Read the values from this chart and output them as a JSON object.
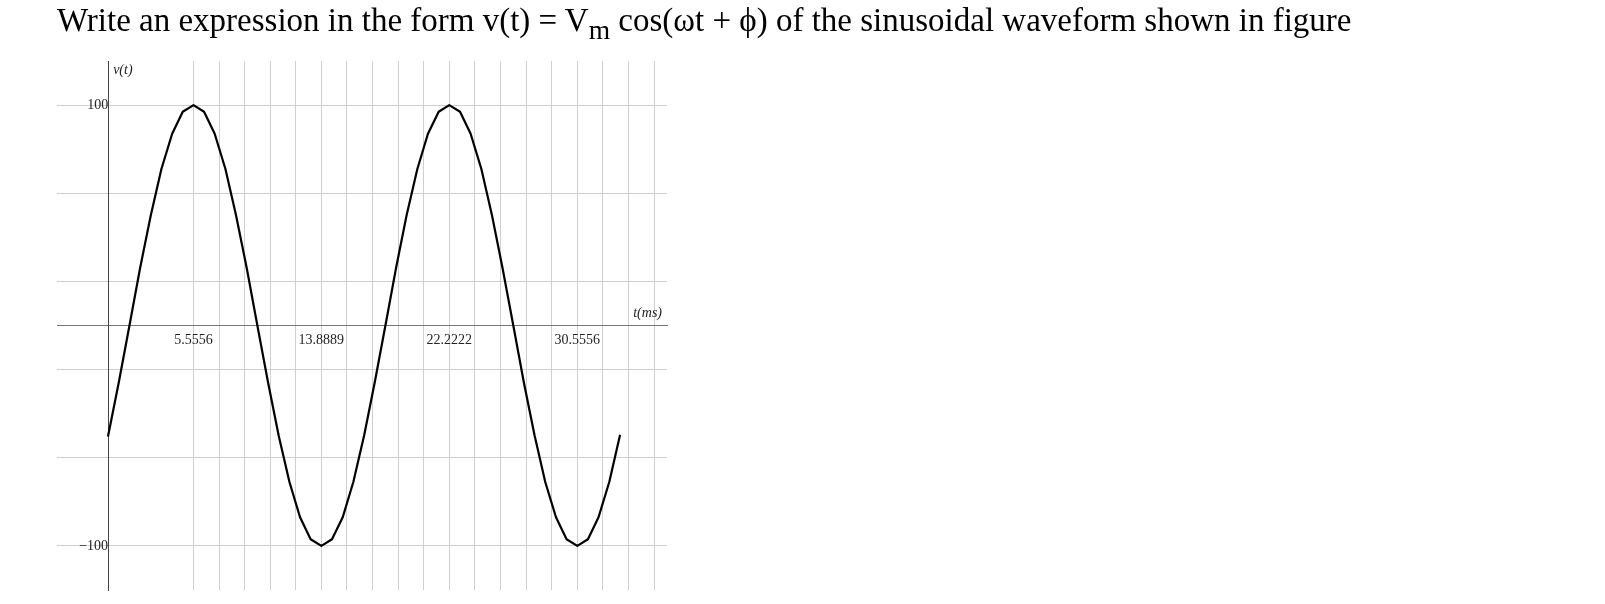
{
  "chart_data": {
    "type": "line",
    "title": "Write an expression in the form v(t) = V$_{m}$ cos(ωt + ϕ) of the sinusoidal waveform shown in figure",
    "xlabel": "t(ms)",
    "ylabel": "v(t)",
    "x": [
      0,
      0.69,
      1.39,
      2.08,
      2.78,
      3.47,
      4.17,
      4.86,
      5.56,
      6.25,
      6.94,
      7.64,
      8.33,
      9.03,
      9.72,
      10.42,
      11.11,
      11.81,
      12.5,
      13.19,
      13.89,
      14.58,
      15.28,
      15.97,
      16.67,
      17.36,
      18.06,
      18.75,
      19.44,
      20.14,
      20.83,
      21.53,
      22.22,
      22.92,
      23.61,
      24.31,
      25,
      25.69,
      26.39,
      27.08,
      27.78,
      28.47,
      29.17,
      29.86,
      30.56,
      31.25,
      31.94,
      32.64,
      33.33
    ],
    "series": [
      {
        "color": "#000000",
        "values": [
          -50,
          -26,
          0,
          26,
          50,
          71,
          87,
          97,
          100,
          97,
          87,
          71,
          50,
          26,
          0,
          -26,
          -50,
          -71,
          -87,
          -97,
          -100,
          -97,
          -87,
          -71,
          -50,
          -26,
          0,
          26,
          50,
          71,
          87,
          97,
          100,
          97,
          87,
          71,
          50,
          26,
          0,
          -26,
          -50,
          -71,
          -87,
          -97,
          -100,
          -97,
          -87,
          -71,
          -50
        ]
      }
    ],
    "xlim": [
      -3.33,
      36.4
    ],
    "ylim": [
      -120,
      120
    ],
    "xticks": [
      {
        "value": 5.5556,
        "label": "5.5556"
      },
      {
        "value": 7.2222,
        "label": null
      },
      {
        "value": 8.8889,
        "label": null
      },
      {
        "value": 10.5556,
        "label": null
      },
      {
        "value": 12.2222,
        "label": null
      },
      {
        "value": 13.8889,
        "label": "13.8889"
      },
      {
        "value": 15.5556,
        "label": null
      },
      {
        "value": 17.2222,
        "label": null
      },
      {
        "value": 18.8889,
        "label": null
      },
      {
        "value": 20.5556,
        "label": null
      },
      {
        "value": 22.2222,
        "label": "22.2222"
      },
      {
        "value": 23.8889,
        "label": null
      },
      {
        "value": 25.5556,
        "label": null
      },
      {
        "value": 27.2222,
        "label": null
      },
      {
        "value": 28.8889,
        "label": null
      },
      {
        "value": 30.5556,
        "label": "30.5556"
      },
      {
        "value": 32.2222,
        "label": null
      },
      {
        "value": 33.8889,
        "label": null
      },
      {
        "value": 35.5556,
        "label": null
      }
    ],
    "yticks": [
      -100,
      {
        "value": -60,
        "label": null
      },
      {
        "value": -20,
        "label": null
      },
      {
        "value": 20,
        "label": null
      },
      {
        "value": 60,
        "label": null
      },
      100
    ],
    "grid": true,
    "marker": "none",
    "line_style": "solid"
  }
}
